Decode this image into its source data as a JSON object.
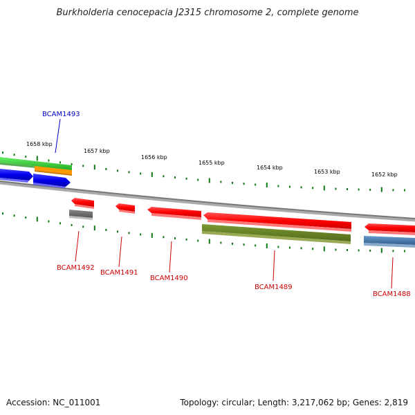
{
  "title": "Burkholderia cenocepacia J2315 chromosome 2, complete genome",
  "footer": {
    "accession": "Accession: NC_011001",
    "summary": "Topology: circular; Length: 3,217,062 bp; Genes: 2,819"
  },
  "scale_labels": [
    "1658 kbp",
    "1657 kbp",
    "1656 kbp",
    "1655 kbp",
    "1654 kbp",
    "1653 kbp",
    "1652 kbp"
  ],
  "genes": [
    {
      "name": "BCAM1493",
      "color": "#0000cc"
    },
    {
      "name": "BCAM1492",
      "color": "#cc0000"
    },
    {
      "name": "BCAM1491",
      "color": "#cc0000"
    },
    {
      "name": "BCAM1490",
      "color": "#cc0000"
    },
    {
      "name": "BCAM1489",
      "color": "#cc0000"
    },
    {
      "name": "BCAM1488",
      "color": "#cc0000"
    }
  ],
  "colors": {
    "red": "#ff0000",
    "blue": "#0000ee",
    "green": "#33cc33",
    "orange": "#ff9900",
    "gray": "#666666",
    "olive": "#668822",
    "steelblue": "#4477aa",
    "tick": "#117711",
    "backbone": "#888888"
  }
}
